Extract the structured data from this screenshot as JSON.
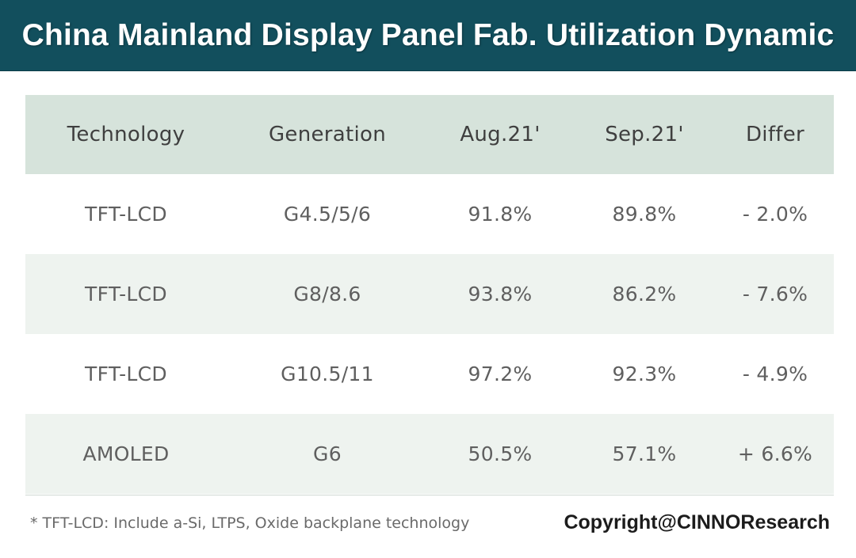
{
  "title": "China Mainland Display Panel Fab. Utilization Dynamic",
  "table": {
    "headers": [
      "Technology",
      "Generation",
      "Aug.21'",
      "Sep.21'",
      "Differ"
    ],
    "rows": [
      [
        "TFT-LCD",
        "G4.5/5/6",
        "91.8%",
        "89.8%",
        "- 2.0%"
      ],
      [
        "TFT-LCD",
        "G8/8.6",
        "93.8%",
        "86.2%",
        "- 7.6%"
      ],
      [
        "TFT-LCD",
        "G10.5/11",
        "97.2%",
        "92.3%",
        "- 4.9%"
      ],
      [
        "AMOLED",
        "G6",
        "50.5%",
        "57.1%",
        "+ 6.6%"
      ]
    ]
  },
  "footnote": "* TFT-LCD: Include a-Si, LTPS, Oxide backplane technology",
  "copyright": "Copyright@CINNOResearch",
  "colors": {
    "title_bar": "#124f5d",
    "header_row": "#d6e3db",
    "shaded_row": "#eef3ef"
  }
}
